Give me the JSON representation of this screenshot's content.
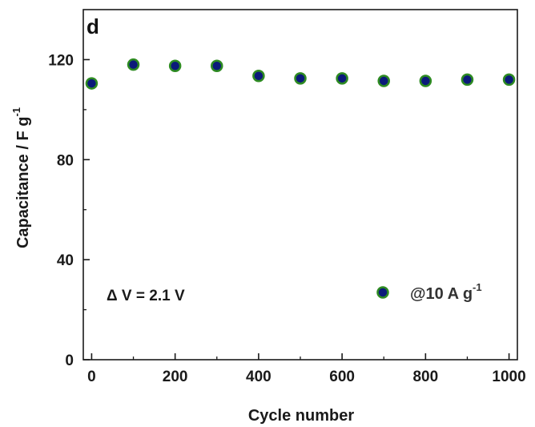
{
  "chart_data": {
    "type": "scatter",
    "panel_label": "d",
    "xlabel": "Cycle number",
    "ylabel_main": "Capacitance / F g",
    "ylabel_sup": "-1",
    "xlim": [
      -20,
      1020
    ],
    "ylim": [
      0,
      140
    ],
    "x_ticks": [
      0,
      200,
      400,
      600,
      800,
      1000
    ],
    "y_ticks": [
      0,
      40,
      80,
      120
    ],
    "annotation": "Δ V = 2.1 V",
    "series": [
      {
        "name_main": "@10 A g",
        "name_sup": "-1",
        "marker_fill": "#0b1a7a",
        "marker_edge": "#2e8b22",
        "x": [
          0,
          100,
          200,
          300,
          400,
          500,
          600,
          700,
          800,
          900,
          1000
        ],
        "y": [
          110.5,
          118,
          117.5,
          117.5,
          113.5,
          112.5,
          112.5,
          111.5,
          111.5,
          112,
          112
        ]
      }
    ]
  }
}
